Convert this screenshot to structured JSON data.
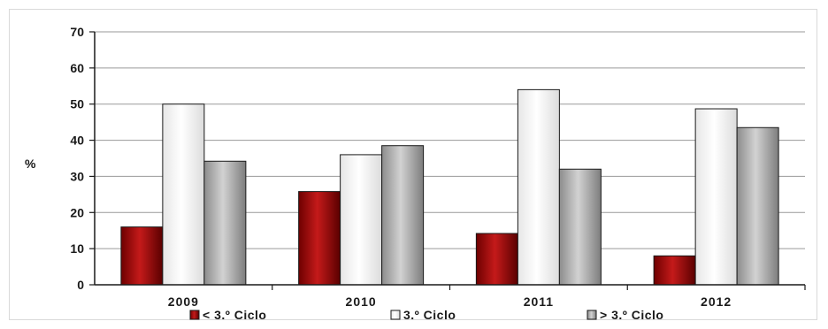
{
  "chart_data": {
    "type": "bar",
    "categories": [
      "2009",
      "2010",
      "2011",
      "2012"
    ],
    "series": [
      {
        "name": "< 3.º Ciclo",
        "values": [
          16,
          25.8,
          14.2,
          8
        ],
        "color": "#a50d0d"
      },
      {
        "name": "3.º Ciclo",
        "values": [
          50,
          36,
          54,
          48.7
        ],
        "color": "#ffffff"
      },
      {
        "name": "> 3.º Ciclo",
        "values": [
          34.2,
          38.5,
          32,
          43.5
        ],
        "color": "#b3b3b3"
      }
    ],
    "ylabel": "%",
    "xlabel": "",
    "ylim": [
      0,
      70
    ],
    "yticks": [
      0,
      10,
      20,
      30,
      40,
      50,
      60,
      70
    ],
    "grid": true,
    "legend": "bottom"
  }
}
